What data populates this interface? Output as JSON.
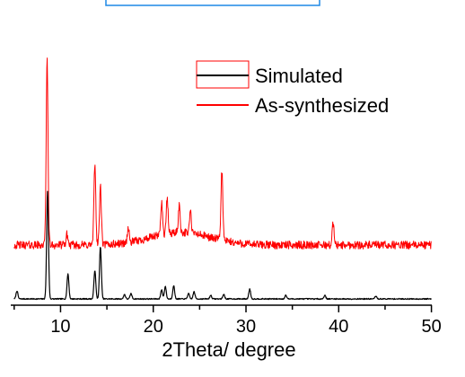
{
  "chart_data": {
    "type": "line",
    "title": "",
    "xlabel": "2Theta/ degree",
    "ylabel": "",
    "xlim": [
      5,
      50
    ],
    "x_ticks": [
      10,
      20,
      30,
      40,
      50
    ],
    "y_axis_shown": false,
    "grid": false,
    "legend_position": "top-right",
    "series": [
      {
        "name": "Simulated",
        "color": "#000000",
        "baseline": 0,
        "peaks": [
          {
            "x": 5.3,
            "y": 9
          },
          {
            "x": 8.6,
            "y": 120
          },
          {
            "x": 10.8,
            "y": 28
          },
          {
            "x": 13.7,
            "y": 32
          },
          {
            "x": 14.3,
            "y": 58
          },
          {
            "x": 16.9,
            "y": 5
          },
          {
            "x": 17.6,
            "y": 6
          },
          {
            "x": 20.9,
            "y": 10
          },
          {
            "x": 21.3,
            "y": 14
          },
          {
            "x": 22.2,
            "y": 15
          },
          {
            "x": 23.8,
            "y": 6
          },
          {
            "x": 24.4,
            "y": 8
          },
          {
            "x": 26.2,
            "y": 4
          },
          {
            "x": 27.6,
            "y": 5
          },
          {
            "x": 30.4,
            "y": 11
          },
          {
            "x": 34.3,
            "y": 4
          },
          {
            "x": 38.5,
            "y": 4
          },
          {
            "x": 44.0,
            "y": 3
          }
        ]
      },
      {
        "name": "As-synthesized",
        "color": "#ff0000",
        "baseline": 60,
        "peaks": [
          {
            "x": 8.55,
            "y": 265
          },
          {
            "x": 10.7,
            "y": 72
          },
          {
            "x": 13.7,
            "y": 150
          },
          {
            "x": 14.3,
            "y": 125
          },
          {
            "x": 17.3,
            "y": 76
          },
          {
            "x": 20.9,
            "y": 97
          },
          {
            "x": 21.5,
            "y": 99
          },
          {
            "x": 22.8,
            "y": 90
          },
          {
            "x": 24.0,
            "y": 84
          },
          {
            "x": 27.4,
            "y": 138
          },
          {
            "x": 39.4,
            "y": 84
          }
        ]
      }
    ],
    "legend": [
      {
        "label": "Simulated",
        "color": "#000000"
      },
      {
        "label": "As-synthesized",
        "color": "#ff0000"
      }
    ]
  }
}
